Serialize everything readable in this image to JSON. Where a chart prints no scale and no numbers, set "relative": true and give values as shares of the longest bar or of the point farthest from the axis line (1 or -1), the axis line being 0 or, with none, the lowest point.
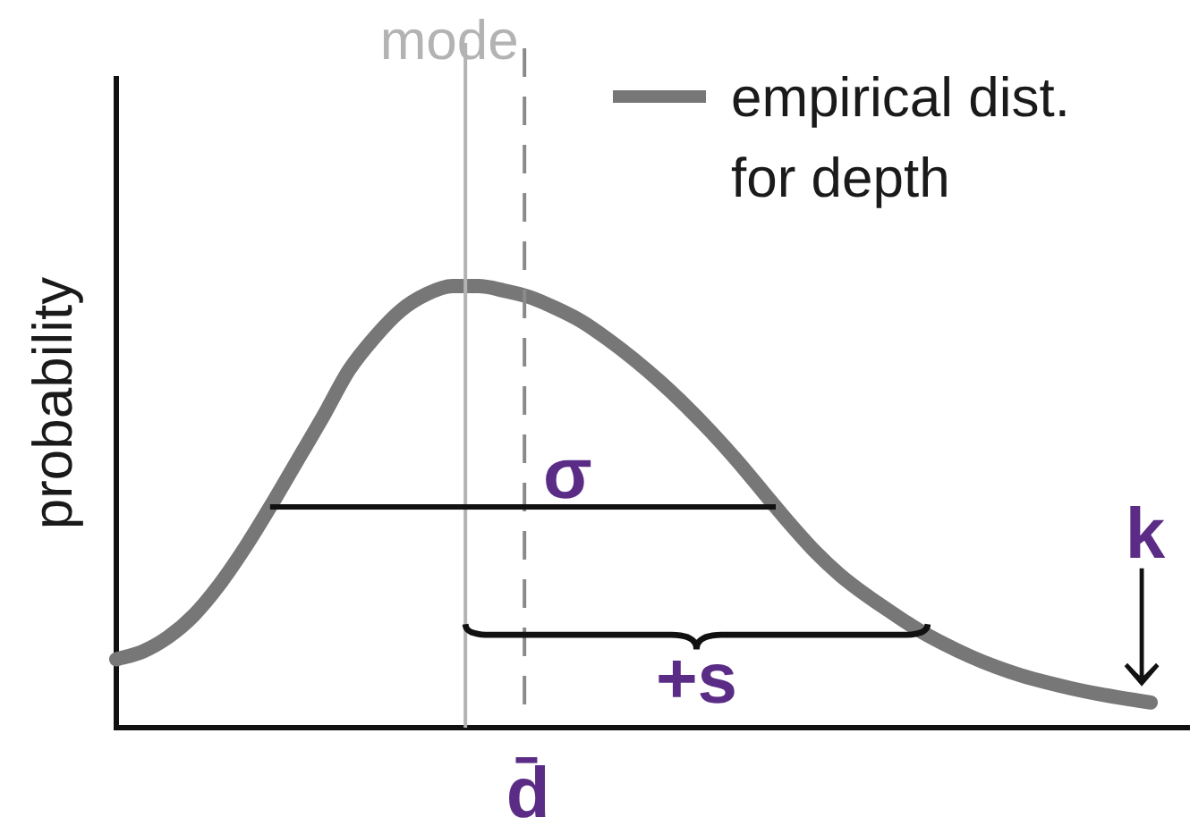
{
  "chart_data": {
    "type": "line",
    "relative": true,
    "ylabel": "probability",
    "tick_labels": false,
    "legend": "top right",
    "categories": [
      null,
      null,
      null,
      null,
      null,
      null,
      null,
      null,
      null,
      null,
      null,
      null,
      null,
      null,
      null,
      null,
      null,
      null,
      null,
      null,
      null,
      null,
      null,
      null,
      null,
      null,
      null,
      null,
      null,
      null,
      null,
      null,
      null,
      null,
      null,
      null,
      null,
      null,
      null,
      null,
      null
    ],
    "series": [
      {
        "name": "empirical dist. for depth",
        "color": "#777777",
        "values": [
          0.155,
          0.172,
          0.205,
          0.255,
          0.325,
          0.41,
          0.505,
          0.605,
          0.705,
          0.81,
          0.885,
          0.945,
          0.982,
          1,
          1,
          0.99,
          0.975,
          0.95,
          0.92,
          0.88,
          0.835,
          0.785,
          0.73,
          0.67,
          0.605,
          0.535,
          0.465,
          0.4,
          0.345,
          0.3,
          0.26,
          0.222,
          0.19,
          0.162,
          0.138,
          0.118,
          0.102,
          0.088,
          0.076,
          0.066,
          0.057
        ]
      }
    ],
    "annotations": [
      "mode",
      "d̄",
      "σ",
      "+s",
      "k"
    ]
  }
}
